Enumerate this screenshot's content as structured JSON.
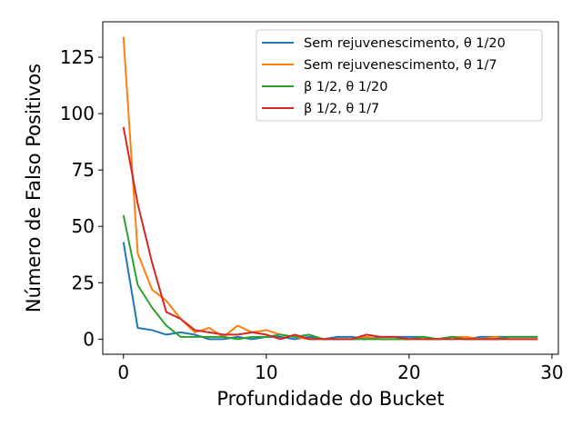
{
  "chart_data": {
    "type": "line",
    "title": "",
    "xlabel": "Profundidade do Bucket",
    "ylabel": "Número de Falso Positivos",
    "xlim": [
      -1.45,
      30.45
    ],
    "ylim": [
      -6.7,
      140.7
    ],
    "xticks": [
      0,
      10,
      20,
      30
    ],
    "yticks": [
      0,
      25,
      50,
      75,
      100,
      125
    ],
    "grid": false,
    "legend_position": "upper right",
    "x": [
      0,
      1,
      2,
      3,
      4,
      5,
      6,
      7,
      8,
      9,
      10,
      11,
      12,
      13,
      14,
      15,
      16,
      17,
      18,
      19,
      20,
      21,
      22,
      23,
      24,
      25,
      26,
      27,
      28,
      29
    ],
    "series": [
      {
        "name": "Sem rejuvenescimento, θ 1/20",
        "color": "#1f77b4",
        "values": [
          43,
          5,
          4,
          2,
          3,
          2,
          0,
          0,
          1,
          0,
          1,
          1,
          0,
          1,
          0,
          1,
          1,
          0,
          1,
          1,
          1,
          1,
          0,
          1,
          0,
          1,
          1,
          1,
          1,
          1
        ]
      },
      {
        "name": "Sem rejuvenescimento, θ 1/7",
        "color": "#ff7f0e",
        "values": [
          134,
          38,
          22,
          17,
          9,
          3,
          5,
          1,
          6,
          3,
          4,
          2,
          1,
          0,
          0,
          0,
          0,
          1,
          0,
          0,
          0,
          0,
          0,
          1,
          1,
          0,
          1,
          0,
          0,
          0
        ]
      },
      {
        "name": "β 1/2, θ 1/20",
        "color": "#2ca02c",
        "values": [
          55,
          24,
          14,
          6,
          1,
          1,
          1,
          1,
          0,
          1,
          1,
          2,
          1,
          2,
          0,
          0,
          0,
          0,
          0,
          0,
          0,
          1,
          0,
          1,
          0,
          0,
          0,
          1,
          1,
          1
        ]
      },
      {
        "name": "β 1/2, θ 1/7",
        "color": "#d62728",
        "values": [
          94,
          60,
          34,
          12,
          9,
          4,
          3,
          2,
          2,
          3,
          2,
          0,
          2,
          0,
          0,
          0,
          0,
          2,
          1,
          1,
          0,
          0,
          0,
          0,
          0,
          0,
          0,
          0,
          0,
          0
        ]
      }
    ]
  }
}
